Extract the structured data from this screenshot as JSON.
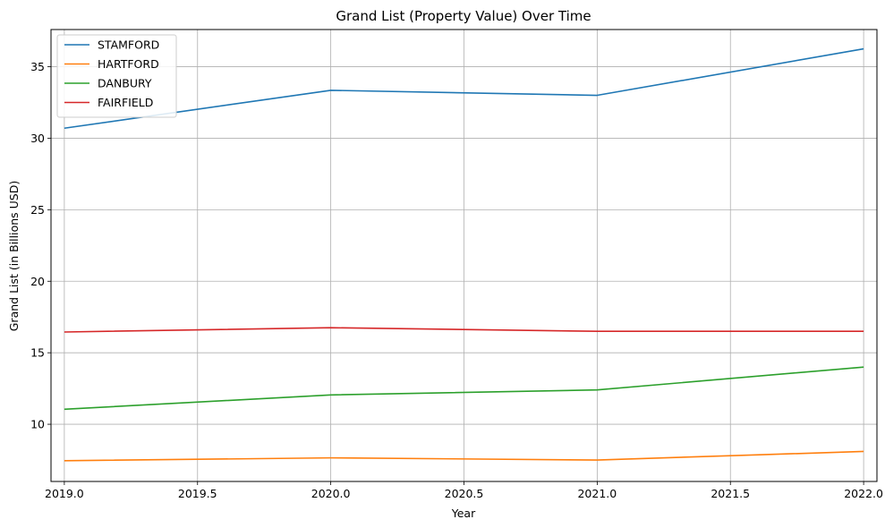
{
  "chart_data": {
    "type": "line",
    "title": "Grand List (Property Value) Over Time",
    "xlabel": "Year",
    "ylabel": "Grand List (in Billions USD)",
    "x": [
      2019,
      2020,
      2021,
      2022
    ],
    "xlim": [
      2018.95,
      2022.05
    ],
    "ylim": [
      6.0,
      37.6
    ],
    "xticks": [
      2019.0,
      2019.5,
      2020.0,
      2020.5,
      2021.0,
      2021.5,
      2022.0
    ],
    "xtick_labels": [
      "2019.0",
      "2019.5",
      "2020.0",
      "2020.5",
      "2021.0",
      "2021.5",
      "2022.0"
    ],
    "yticks": [
      10,
      15,
      20,
      25,
      30,
      35
    ],
    "ytick_labels": [
      "10",
      "15",
      "20",
      "25",
      "30",
      "35"
    ],
    "grid": true,
    "legend_position": "top-left",
    "series": [
      {
        "name": "STAMFORD",
        "color": "#1f77b4",
        "values": [
          30.7,
          33.35,
          33.0,
          36.25
        ]
      },
      {
        "name": "HARTFORD",
        "color": "#ff7f0e",
        "values": [
          7.45,
          7.65,
          7.5,
          8.1
        ]
      },
      {
        "name": "DANBURY",
        "color": "#2ca02c",
        "values": [
          11.05,
          12.05,
          12.4,
          14.0
        ]
      },
      {
        "name": "FAIRFIELD",
        "color": "#d62728",
        "values": [
          16.45,
          16.75,
          16.5,
          16.5
        ]
      }
    ]
  }
}
